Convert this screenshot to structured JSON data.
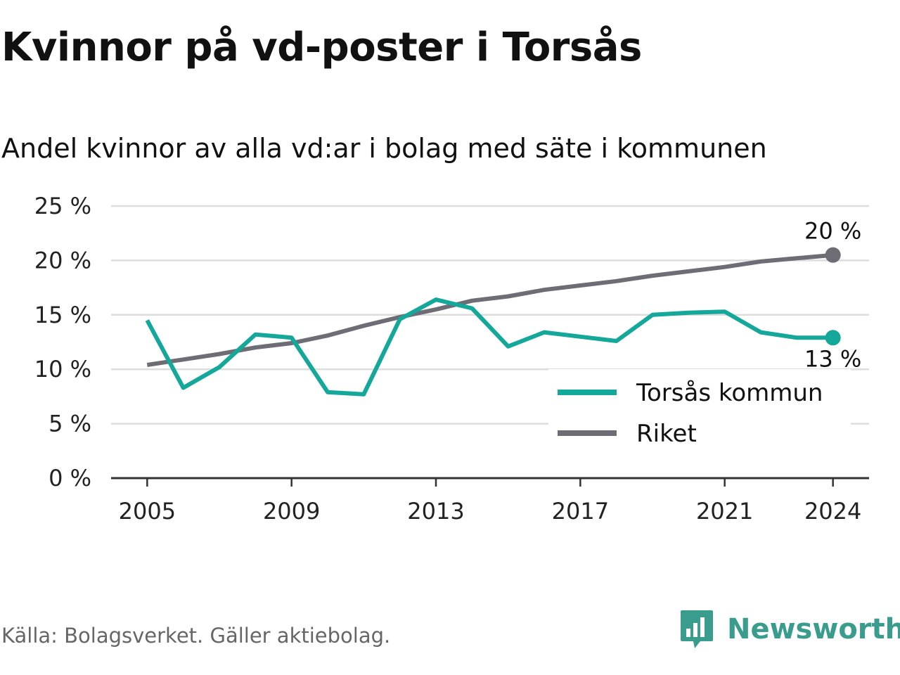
{
  "header": {
    "title": "Kvinnor på vd-poster i Torsås",
    "subtitle": "Andel kvinnor av alla vd:ar i bolag med säte i kommunen"
  },
  "footer": {
    "source": "Källa: Bolagsverket. Gäller aktiebolag.",
    "brand": "Newsworthy",
    "brand_icon": "bar-chart-speech-bubble-icon"
  },
  "colors": {
    "series_torsas": "#13a89a",
    "series_riket": "#6e6d75",
    "grid": "#dddddd",
    "axis": "#333333",
    "brand": "#3a9c8c"
  },
  "chart_data": {
    "type": "line",
    "x": [
      2005,
      2006,
      2007,
      2008,
      2009,
      2010,
      2011,
      2012,
      2013,
      2014,
      2015,
      2016,
      2017,
      2018,
      2019,
      2020,
      2021,
      2022,
      2023,
      2024
    ],
    "series": [
      {
        "name": "Torsås kommun",
        "values": [
          14.5,
          8.3,
          10.2,
          13.2,
          12.9,
          7.9,
          7.7,
          14.6,
          16.4,
          15.6,
          12.1,
          13.4,
          13.0,
          12.6,
          15.0,
          15.2,
          15.3,
          13.4,
          12.9,
          12.9
        ],
        "end_label": "13 %"
      },
      {
        "name": "Riket",
        "values": [
          10.4,
          10.9,
          11.4,
          12.0,
          12.4,
          13.1,
          14.0,
          14.8,
          15.5,
          16.3,
          16.7,
          17.3,
          17.7,
          18.1,
          18.6,
          19.0,
          19.4,
          19.9,
          20.2,
          20.5
        ],
        "end_label": "20 %"
      }
    ],
    "y_ticks": [
      "0 %",
      "5 %",
      "10 %",
      "15 %",
      "20 %",
      "25 %"
    ],
    "x_ticks": [
      "2005",
      "2009",
      "2013",
      "2017",
      "2021",
      "2024"
    ],
    "ylim": [
      0,
      25
    ],
    "xlim": [
      2004,
      2025
    ],
    "grid": true,
    "legend_position": "bottom-right"
  }
}
